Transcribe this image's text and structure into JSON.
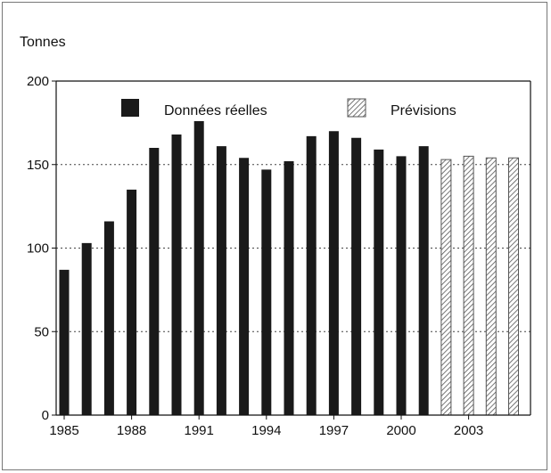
{
  "chart_data": {
    "type": "bar",
    "ylabel": "Tonnes",
    "ylim": [
      0,
      200
    ],
    "yticks": [
      0,
      50,
      100,
      150,
      200
    ],
    "xticks": [
      1985,
      1988,
      1991,
      1994,
      1997,
      2000,
      2003
    ],
    "grid": "horizontal dotted at 150 and 50 and 100",
    "legend_position": "top",
    "series": [
      {
        "name": "Données réelles",
        "color": "#1a1a1a",
        "pattern": "solid",
        "x": [
          1985,
          1986,
          1987,
          1988,
          1989,
          1990,
          1991,
          1992,
          1993,
          1994,
          1995,
          1996,
          1997,
          1998,
          1999,
          2000,
          2001
        ],
        "values": [
          87,
          103,
          116,
          135,
          160,
          168,
          176,
          161,
          154,
          147,
          152,
          167,
          170,
          166,
          159,
          155,
          161
        ]
      },
      {
        "name": "Prévisions",
        "color": "#555555",
        "pattern": "hatched",
        "x": [
          2002,
          2003,
          2004,
          2005
        ],
        "values": [
          153,
          155,
          154,
          154
        ]
      }
    ]
  }
}
